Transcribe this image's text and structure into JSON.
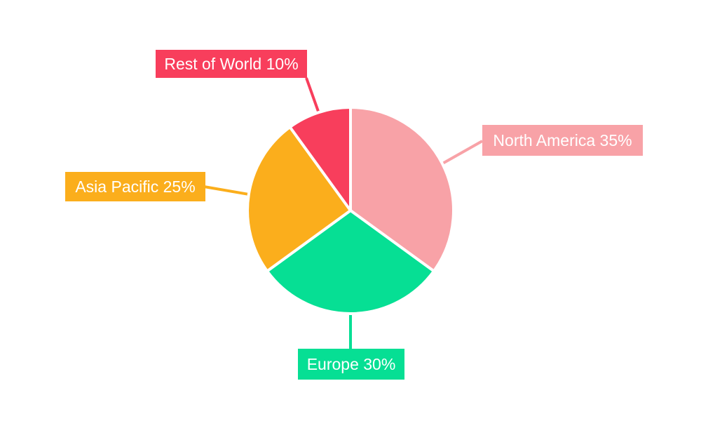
{
  "chart_data": {
    "type": "pie",
    "title": "",
    "unit": "%",
    "background": "#FFFFFF",
    "label_text_color": "#FFFFFF",
    "separator_color": "#FFFFFF",
    "start_angle": "12-oclock",
    "direction": "clockwise",
    "legend": "none",
    "categories": [
      "North America",
      "Europe",
      "Asia Pacific",
      "Rest of World"
    ],
    "values": [
      35,
      30,
      25,
      10
    ],
    "slices": [
      {
        "label": "North America",
        "value": 35,
        "label_text": "North America 35%",
        "color": "#F8A2A7"
      },
      {
        "label": "Europe",
        "value": 30,
        "label_text": "Europe 30%",
        "color": "#06DF94"
      },
      {
        "label": "Asia Pacific",
        "value": 25,
        "label_text": "Asia Pacific 25%",
        "color": "#FBAE1C"
      },
      {
        "label": "Rest of World",
        "value": 10,
        "label_text": "Rest of World 10%",
        "color": "#F83E5C"
      }
    ]
  }
}
